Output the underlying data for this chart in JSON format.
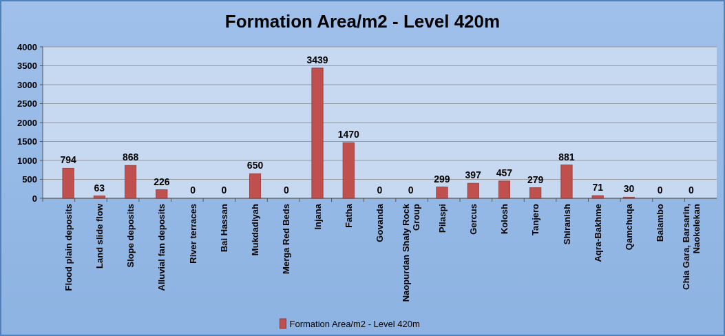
{
  "chart_data": {
    "type": "bar",
    "title": "Formation Area/m2 - Level 420m",
    "categories": [
      "Flood plain deposits",
      "Land slide flow",
      "Slope deposits",
      "Alluvial fan deposits",
      "River terraces",
      "Bai Hassan",
      "Mukdadiyah",
      "Merga Red Beds",
      "Injana",
      "Fatha",
      "Govanda",
      "Naopurdan Shaly Rock Group",
      "Pilaspi",
      "Gercus",
      "Kolosh",
      "Tanjero",
      "Shiranish",
      "Aqra-Bakhme",
      "Qamchuqa",
      "Balambo",
      "Chia Gara, Barsarin, Naokelekan"
    ],
    "series": [
      {
        "name": "Formation Area/m2 - Level 420m",
        "color": "#c0504d",
        "values": [
          794,
          63,
          868,
          226,
          0,
          0,
          650,
          0,
          3439,
          1470,
          0,
          0,
          299,
          397,
          457,
          279,
          881,
          71,
          30,
          0,
          0
        ]
      }
    ],
    "ylim": [
      0,
      4000
    ],
    "yticks": [
      0,
      500,
      1000,
      1500,
      2000,
      2500,
      3000,
      3500,
      4000
    ],
    "grid": "y",
    "legend": "bottom",
    "data_labels": true
  }
}
